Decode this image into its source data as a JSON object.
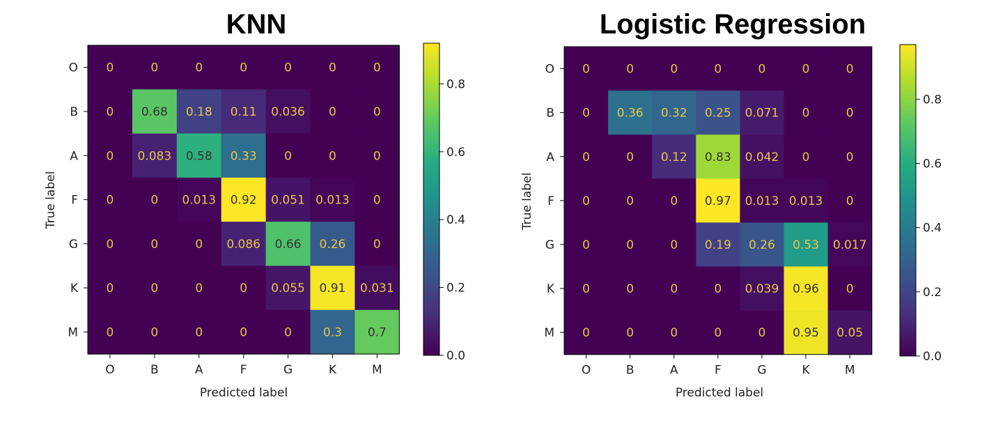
{
  "chart_data": [
    {
      "type": "heatmap",
      "title": "KNN",
      "xlabel": "Predicted label",
      "ylabel": "True label",
      "categories": [
        "O",
        "B",
        "A",
        "F",
        "G",
        "K",
        "M"
      ],
      "matrix": [
        [
          "0",
          "0",
          "0",
          "0",
          "0",
          "0",
          "0"
        ],
        [
          "0",
          "0.68",
          "0.18",
          "0.11",
          "0.036",
          "0",
          "0"
        ],
        [
          "0",
          "0.083",
          "0.58",
          "0.33",
          "0",
          "0",
          "0"
        ],
        [
          "0",
          "0",
          "0.013",
          "0.92",
          "0.051",
          "0.013",
          "0"
        ],
        [
          "0",
          "0",
          "0",
          "0.086",
          "0.66",
          "0.26",
          "0"
        ],
        [
          "0",
          "0",
          "0",
          "0",
          "0.055",
          "0.91",
          "0.031"
        ],
        [
          "0",
          "0",
          "0",
          "0",
          "0",
          "0.3",
          "0.7"
        ]
      ],
      "colorbar": {
        "min": 0,
        "max": 0.92,
        "ticks": [
          "0.0",
          "0.2",
          "0.4",
          "0.6",
          "0.8"
        ]
      }
    },
    {
      "type": "heatmap",
      "title": "Logistic Regression",
      "xlabel": "Predicted label",
      "ylabel": "True label",
      "categories": [
        "O",
        "B",
        "A",
        "F",
        "G",
        "K",
        "M"
      ],
      "matrix": [
        [
          "0",
          "0",
          "0",
          "0",
          "0",
          "0",
          "0"
        ],
        [
          "0",
          "0.36",
          "0.32",
          "0.25",
          "0.071",
          "0",
          "0"
        ],
        [
          "0",
          "0",
          "0.12",
          "0.83",
          "0.042",
          "0",
          "0"
        ],
        [
          "0",
          "0",
          "0",
          "0.97",
          "0.013",
          "0.013",
          "0"
        ],
        [
          "0",
          "0",
          "0",
          "0.19",
          "0.26",
          "0.53",
          "0.017"
        ],
        [
          "0",
          "0",
          "0",
          "0",
          "0.039",
          "0.96",
          "0"
        ],
        [
          "0",
          "0",
          "0",
          "0",
          "0",
          "0.95",
          "0.05"
        ]
      ],
      "colorbar": {
        "min": 0,
        "max": 0.97,
        "ticks": [
          "0.0",
          "0.2",
          "0.4",
          "0.6",
          "0.8"
        ]
      }
    }
  ]
}
